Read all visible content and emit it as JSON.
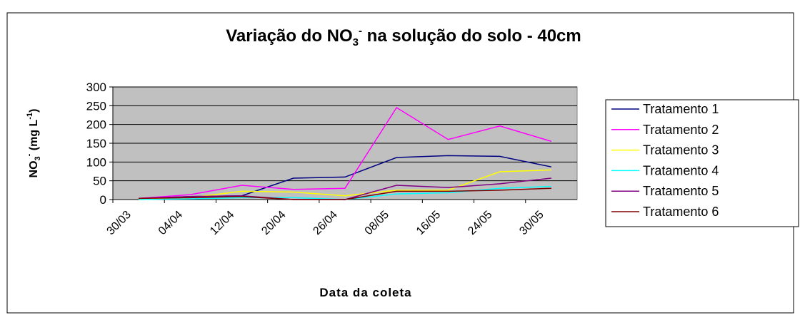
{
  "chart_data": {
    "type": "line",
    "title": [
      "Variação do NO",
      "3",
      "-",
      " na solução do solo - 40cm"
    ],
    "y_label": [
      "NO",
      "3",
      "-",
      " (mg L",
      "-1",
      ")"
    ],
    "x_label": "Data da coleta",
    "categories": [
      "30/03",
      "04/04",
      "12/04",
      "20/04",
      "26/04",
      "08/05",
      "16/05",
      "24/05",
      "30/05"
    ],
    "series": [
      {
        "name": "Tratamento 1",
        "color": "#000080",
        "values": [
          3,
          8,
          10,
          57,
          60,
          112,
          117,
          115,
          87
        ]
      },
      {
        "name": "Tratamento 2",
        "color": "#ff00ff",
        "values": [
          3,
          13,
          38,
          27,
          30,
          245,
          160,
          196,
          155
        ]
      },
      {
        "name": "Tratamento 3",
        "color": "#ffff00",
        "values": [
          0,
          5,
          22,
          20,
          10,
          25,
          25,
          74,
          79
        ]
      },
      {
        "name": "Tratamento 4",
        "color": "#00ffff",
        "values": [
          0,
          2,
          5,
          5,
          0,
          15,
          18,
          30,
          35
        ]
      },
      {
        "name": "Tratamento 5",
        "color": "#800080",
        "values": [
          3,
          8,
          10,
          0,
          0,
          38,
          32,
          42,
          57
        ]
      },
      {
        "name": "Tratamento 6",
        "color": "#800000",
        "values": [
          3,
          5,
          8,
          0,
          0,
          22,
          22,
          25,
          30
        ]
      }
    ],
    "ylim": [
      0,
      300
    ],
    "yticks": [
      0,
      50,
      100,
      150,
      200,
      250,
      300
    ],
    "grid": true,
    "legend": "right"
  }
}
